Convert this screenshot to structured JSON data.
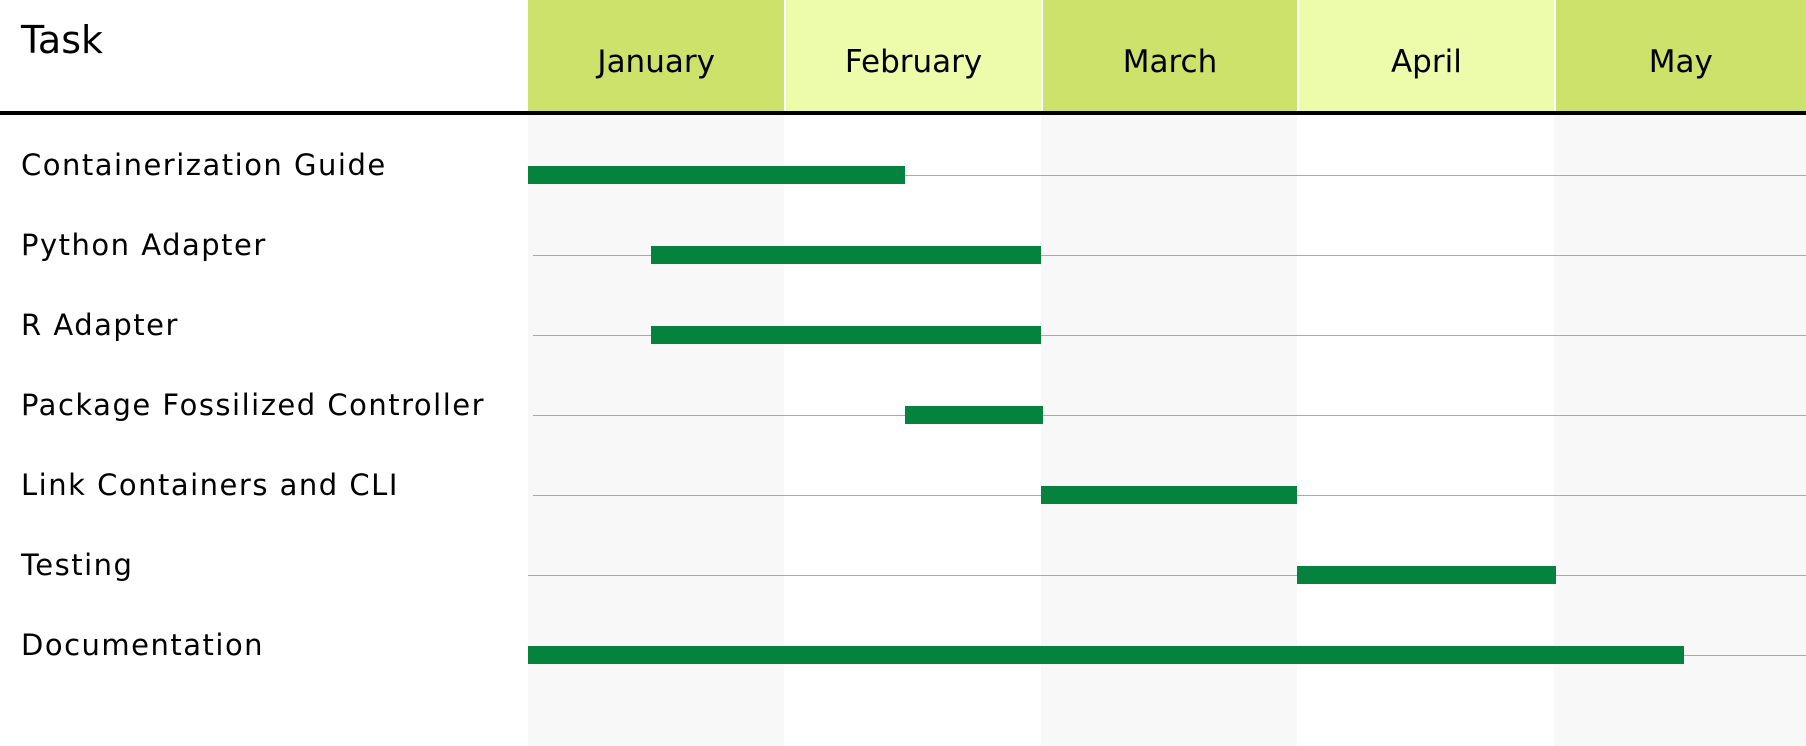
{
  "header": {
    "task_label": "Task"
  },
  "colors": {
    "month_dark": "#cce26a",
    "month_light": "#edfcaa",
    "band_shade": "#f8f8f8",
    "band_plain": "#ffffff",
    "bar": "#05823d",
    "grid_line": "#a9a9a9"
  },
  "chart_data": {
    "type": "gantt",
    "months": [
      "January",
      "February",
      "March",
      "April",
      "May"
    ],
    "tasks": [
      {
        "label": "Containerization Guide",
        "start": 0.0,
        "end": 1.47
      },
      {
        "label": "Python Adapter",
        "start": 0.48,
        "end": 2.0
      },
      {
        "label": "R Adapter",
        "start": 0.48,
        "end": 2.0
      },
      {
        "label": "Package Fossilized Controller",
        "start": 1.47,
        "end": 2.01
      },
      {
        "label": "Link Containers and CLI",
        "start": 2.0,
        "end": 3.0
      },
      {
        "label": "Testing",
        "start": 3.0,
        "end": 4.01
      },
      {
        "label": "Documentation",
        "start": 0.0,
        "end": 4.51
      }
    ]
  }
}
